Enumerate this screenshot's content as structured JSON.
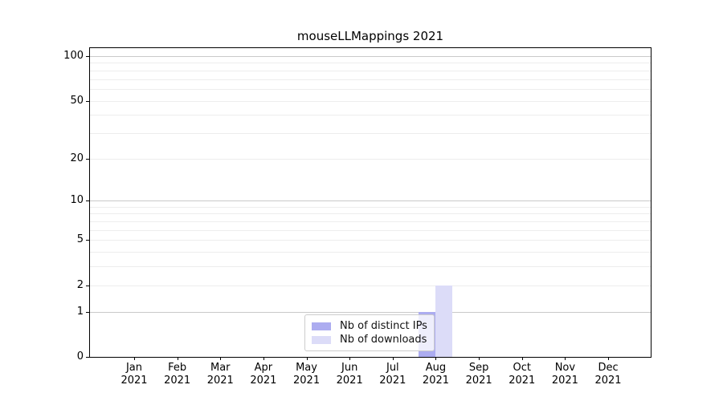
{
  "title": "mouseLLMappings 2021",
  "colors": {
    "background": "#ffffff",
    "axis": "#000000",
    "grid_major": "#c9c9c9",
    "grid_minor": "#ededed",
    "bar_distinct_ips": "#acacf0",
    "bar_downloads": "#dcdcf8",
    "legend_border": "#cccccc"
  },
  "chart_data": {
    "type": "bar",
    "title": "mouseLLMappings 2021",
    "xlabel": "",
    "ylabel": "",
    "categories": [
      "Jan 2021",
      "Feb 2021",
      "Mar 2021",
      "Apr 2021",
      "May 2021",
      "Jun 2021",
      "Jul 2021",
      "Aug 2021",
      "Sep 2021",
      "Oct 2021",
      "Nov 2021",
      "Dec 2021"
    ],
    "series": [
      {
        "name": "Nb of distinct IPs",
        "color": "#acacf0",
        "values": [
          0,
          0,
          0,
          0,
          0,
          0,
          0,
          1,
          0,
          0,
          0,
          0
        ]
      },
      {
        "name": "Nb of downloads",
        "color": "#dcdcf8",
        "values": [
          0,
          0,
          0,
          0,
          0,
          0,
          0,
          2,
          0,
          0,
          0,
          0
        ]
      }
    ],
    "y_scale": "log1p",
    "ylim": [
      0,
      100
    ],
    "y_ticks": [
      0,
      1,
      2,
      5,
      10,
      20,
      50,
      100
    ],
    "gridlines": {
      "major": [
        1,
        10,
        100
      ],
      "minor": [
        2,
        3,
        4,
        5,
        6,
        7,
        8,
        9,
        20,
        30,
        40,
        50,
        60,
        70,
        80,
        90
      ]
    },
    "grid": true,
    "legend_position": "inside lower-center"
  }
}
